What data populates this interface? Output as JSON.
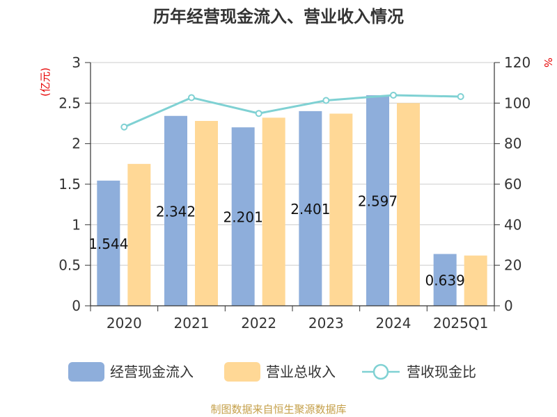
{
  "chart_data": {
    "type": "bar",
    "title": "历年经营现金流入、营业收入情况",
    "categories": [
      "2020",
      "2021",
      "2022",
      "2023",
      "2024",
      "2025Q1"
    ],
    "series": [
      {
        "name": "经营现金流入",
        "kind": "bar",
        "axis": "left",
        "color": "#8eaedb",
        "values": [
          1.544,
          2.342,
          2.201,
          2.401,
          2.597,
          0.639
        ],
        "labels": [
          "1.544",
          "2.342",
          "2.201",
          "2.401",
          "2.597",
          "0.639"
        ]
      },
      {
        "name": "营业总收入",
        "kind": "bar",
        "axis": "left",
        "color": "#ffd896",
        "values": [
          1.75,
          2.28,
          2.32,
          2.37,
          2.5,
          0.62
        ]
      },
      {
        "name": "营收现金比",
        "kind": "line",
        "axis": "right",
        "color": "#7fd1d3",
        "values": [
          88.2,
          102.7,
          94.9,
          101.3,
          103.9,
          103.2
        ]
      }
    ],
    "y_left": {
      "unit": "(亿元)",
      "ylim": [
        0,
        3
      ],
      "ticks": [
        "0",
        "0.5",
        "1",
        "1.5",
        "2",
        "2.5",
        "3"
      ]
    },
    "y_right": {
      "unit": "%",
      "ylim": [
        0,
        120
      ],
      "ticks": [
        "0",
        "20",
        "40",
        "60",
        "80",
        "100",
        "120"
      ]
    },
    "grid": true,
    "legend_position": "bottom"
  },
  "source": "制图数据来自恒生聚源数据库"
}
